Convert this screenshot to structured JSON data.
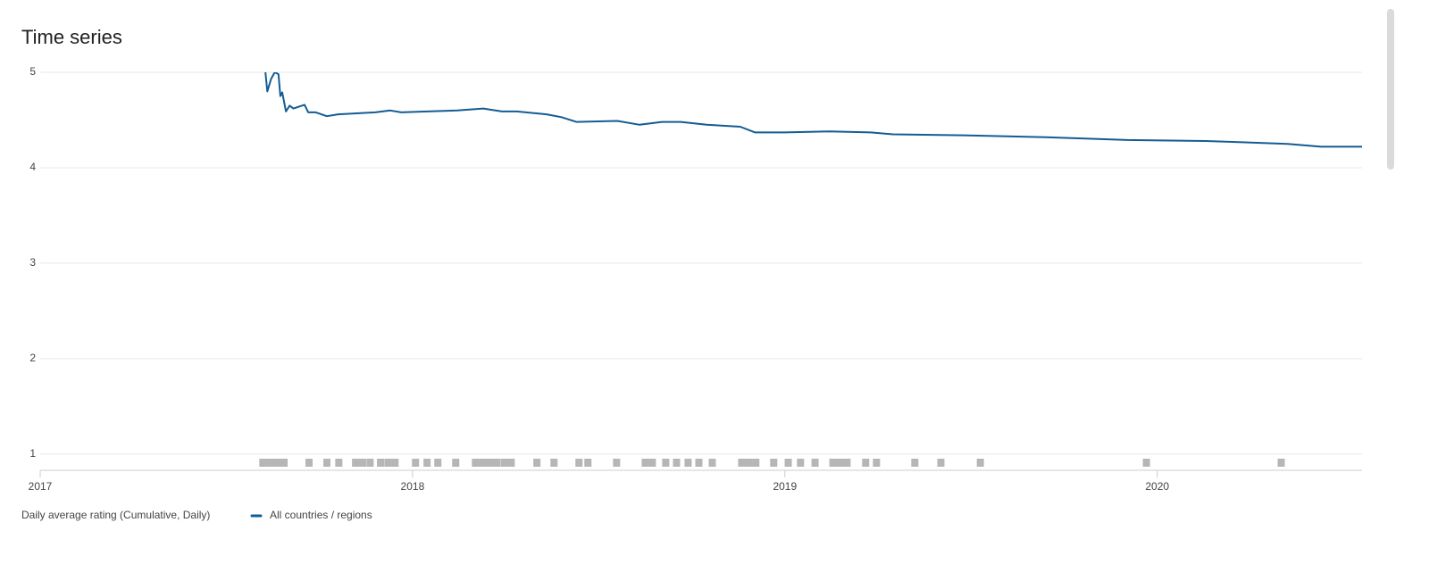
{
  "chart_data": {
    "type": "line",
    "title": "Time series",
    "y_label": "Daily average rating (Cumulative, Daily)",
    "x": [
      2017.605,
      2017.61,
      2017.62,
      2017.63,
      2017.64,
      2017.645,
      2017.65,
      2017.66,
      2017.67,
      2017.68,
      2017.71,
      2017.72,
      2017.74,
      2017.77,
      2017.8,
      2017.85,
      2017.9,
      2017.94,
      2017.97,
      2018.04,
      2018.12,
      2018.19,
      2018.24,
      2018.28,
      2018.36,
      2018.4,
      2018.44,
      2018.55,
      2018.61,
      2018.67,
      2018.72,
      2018.79,
      2018.88,
      2018.92,
      2019.0,
      2019.12,
      2019.23,
      2019.29,
      2019.48,
      2019.7,
      2019.92,
      2020.13,
      2020.35,
      2020.44,
      2020.55
    ],
    "series": [
      {
        "name": "All countries / regions",
        "color": "#135c94",
        "values": [
          5.0,
          4.8,
          4.93,
          5.0,
          4.98,
          4.75,
          4.79,
          4.59,
          4.65,
          4.62,
          4.66,
          4.58,
          4.58,
          4.54,
          4.56,
          4.57,
          4.58,
          4.6,
          4.58,
          4.59,
          4.6,
          4.62,
          4.59,
          4.59,
          4.56,
          4.53,
          4.48,
          4.49,
          4.45,
          4.48,
          4.48,
          4.45,
          4.43,
          4.37,
          4.37,
          4.38,
          4.37,
          4.35,
          4.34,
          4.32,
          4.29,
          4.28,
          4.25,
          4.22,
          4.22
        ]
      }
    ],
    "events": [
      2017.598,
      2017.617,
      2017.636,
      2017.655,
      2017.722,
      2017.77,
      2017.802,
      2017.847,
      2017.866,
      2017.886,
      2017.914,
      2017.934,
      2017.953,
      2018.008,
      2018.039,
      2018.068,
      2018.116,
      2018.169,
      2018.188,
      2018.207,
      2018.226,
      2018.246,
      2018.265,
      2018.334,
      2018.38,
      2018.447,
      2018.471,
      2018.548,
      2018.625,
      2018.644,
      2018.68,
      2018.709,
      2018.74,
      2018.769,
      2018.805,
      2018.884,
      2018.903,
      2018.922,
      2018.97,
      2019.009,
      2019.042,
      2019.081,
      2019.129,
      2019.148,
      2019.167,
      2019.217,
      2019.246,
      2019.349,
      2019.419,
      2019.525,
      2019.971,
      2020.333
    ],
    "events_color": "#9e9e9e",
    "xlim": [
      2017,
      2020.55
    ],
    "xticks": [
      2017,
      2018,
      2019,
      2020
    ],
    "ylim": [
      0.83,
      5
    ],
    "yticks": [
      1,
      2,
      3,
      4,
      5
    ],
    "grid": true
  }
}
